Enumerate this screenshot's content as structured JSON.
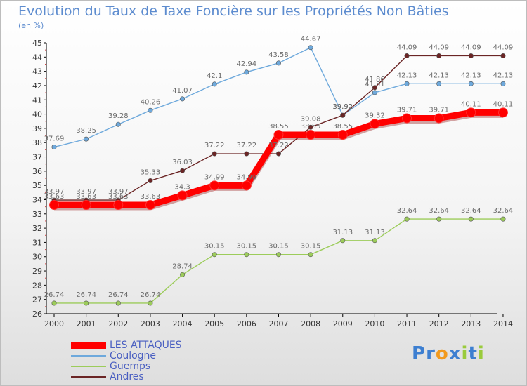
{
  "chart_data": {
    "type": "line",
    "title": "Evolution du Taux de Taxe Foncière sur les Propriétés Non Bâties",
    "subtitle": "(en %)",
    "categories": [
      "2000",
      "2001",
      "2002",
      "2003",
      "2004",
      "2005",
      "2006",
      "2007",
      "2008",
      "2009",
      "2010",
      "2011",
      "2012",
      "2013",
      "2014"
    ],
    "ylim": [
      26,
      45
    ],
    "yticks": [
      26,
      27,
      28,
      29,
      30,
      31,
      32,
      33,
      34,
      35,
      36,
      37,
      38,
      39,
      40,
      41,
      42,
      43,
      44,
      45
    ],
    "grid": false,
    "legend_position": "bottom-left",
    "series": [
      {
        "name": "LES ATTAQUES",
        "color": "#ff0000",
        "values": [
          33.63,
          33.63,
          33.63,
          33.63,
          34.3,
          34.99,
          34.99,
          38.55,
          38.55,
          38.55,
          39.32,
          39.71,
          39.71,
          40.11,
          40.11
        ],
        "labels": [
          "33.63",
          "33.63",
          "33.63",
          "33.63",
          "34.3",
          "34.99",
          "34.99",
          "38.55",
          "38.55",
          "38.55",
          "39.32",
          "39.71",
          "39.71",
          "40.11",
          "40.11"
        ]
      },
      {
        "name": "Coulogne",
        "color": "#6ea9dc",
        "values": [
          37.69,
          38.25,
          39.28,
          40.26,
          41.07,
          42.1,
          42.94,
          43.58,
          44.67,
          39.92,
          41.51,
          42.13,
          42.13,
          42.13,
          42.13
        ],
        "labels": [
          "37.69",
          "38.25",
          "39.28",
          "40.26",
          "41.07",
          "42.1",
          "42.94",
          "43.58",
          "44.67",
          "39.92",
          "41.51",
          "42.13",
          "42.13",
          "42.13",
          "42.13"
        ]
      },
      {
        "name": "Guemps",
        "color": "#9ccc5a",
        "values": [
          26.74,
          26.74,
          26.74,
          26.74,
          28.74,
          30.15,
          30.15,
          30.15,
          30.15,
          31.13,
          31.13,
          32.64,
          32.64,
          32.64,
          32.64
        ],
        "labels": [
          "26.74",
          "26.74",
          "26.74",
          "26.74",
          "28.74",
          "30.15",
          "30.15",
          "30.15",
          "30.15",
          "31.13",
          "31.13",
          "32.64",
          "32.64",
          "32.64",
          "32.64"
        ]
      },
      {
        "name": "Andres",
        "color": "#6b2525",
        "values": [
          33.97,
          33.97,
          33.97,
          35.33,
          36.03,
          37.22,
          37.22,
          37.22,
          39.08,
          39.92,
          41.86,
          44.09,
          44.09,
          44.09,
          44.09
        ],
        "labels": [
          "33.97",
          "33.97",
          "33.97",
          "35.33",
          "36.03",
          "37.22",
          "37.22",
          "37.22",
          "39.08",
          "39.92",
          "41.86",
          "44.09",
          "44.09",
          "44.09",
          "44.09"
        ]
      }
    ]
  },
  "brand": {
    "letters": [
      "P",
      "r",
      "o",
      "x",
      "i",
      "t",
      "i"
    ],
    "colors": [
      "#3d7fd1",
      "#3d7fd1",
      "#f29a1d",
      "#3d7fd1",
      "#9acb3c",
      "#3d7fd1",
      "#9acb3c"
    ]
  }
}
